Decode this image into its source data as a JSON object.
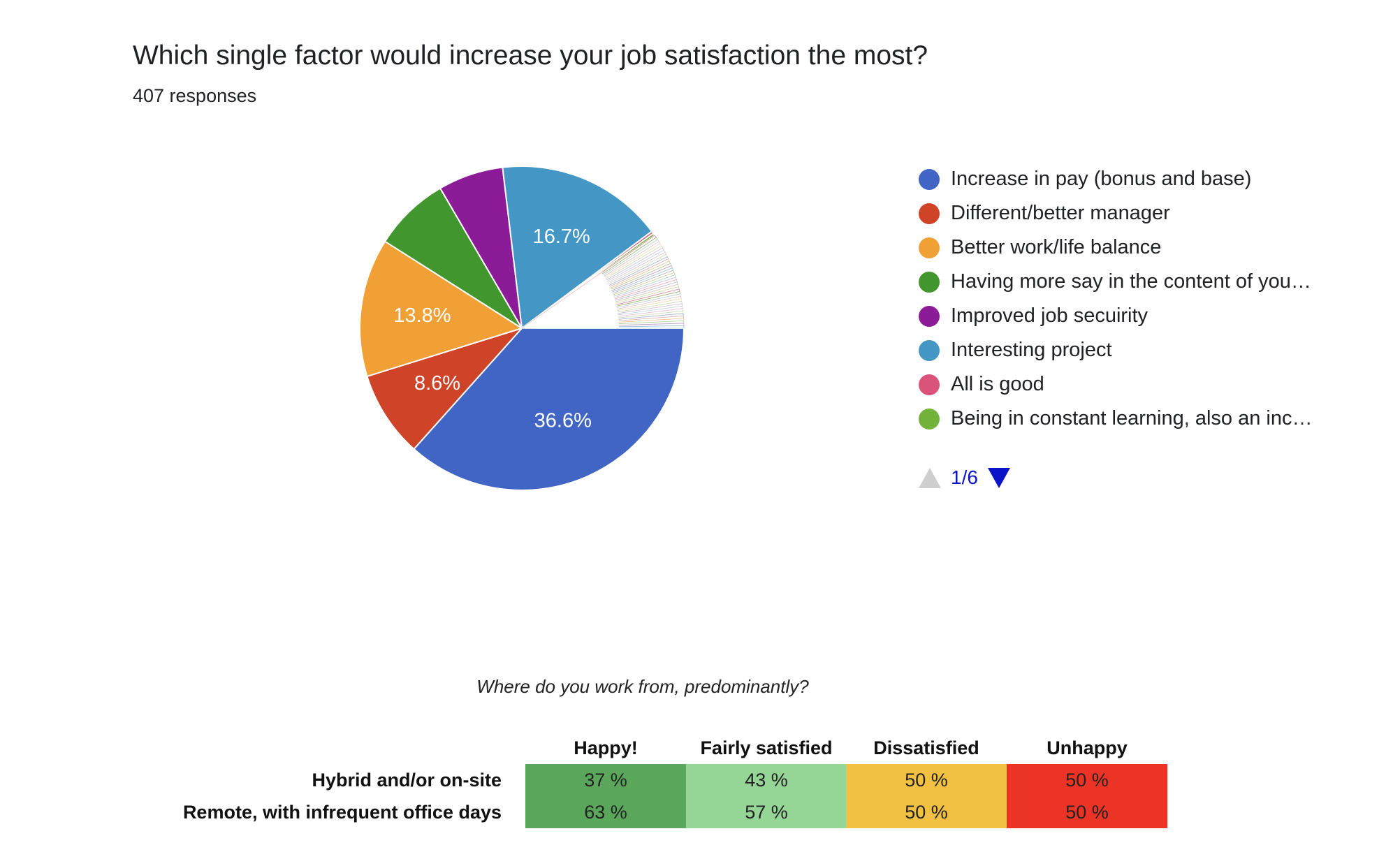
{
  "question": {
    "title": "Which single factor would increase your job satisfaction the most?",
    "responses": "407 responses"
  },
  "chart_data": [
    {
      "type": "pie",
      "title": "Which single factor would increase your job satisfaction the most?",
      "subtitle": "407 responses",
      "legend_position": "right",
      "slices": [
        {
          "label": "Increase in pay (bonus and base)",
          "value": 36.6,
          "color": "#4065c4",
          "data_label": "36.6%"
        },
        {
          "label": "Different/better manager",
          "value": 8.6,
          "color": "#cf4428",
          "data_label": "8.6%"
        },
        {
          "label": "Better work/life balance",
          "value": 13.8,
          "color": "#f0a035",
          "data_label": "13.8%"
        },
        {
          "label": "Having more say in the content of you…",
          "value": 7.6,
          "color": "#41962e",
          "data_label": ""
        },
        {
          "label": "Improved job secuirity",
          "value": 6.5,
          "color": "#8c1b98",
          "data_label": ""
        },
        {
          "label": "Interesting project",
          "value": 16.7,
          "color": "#4496c5",
          "data_label": "16.7%"
        },
        {
          "label": "All is good",
          "value": 0.25,
          "color": "#d9537a",
          "data_label": ""
        },
        {
          "label": "Being in constant learning, also an inc…",
          "value": 0.25,
          "color": "#72b23b",
          "data_label": ""
        }
      ],
      "pagination": "1/6"
    },
    {
      "type": "table",
      "title": "Where do you work from, predominantly?",
      "columns": [
        "Happy!",
        "Fairly satisfied",
        "Dissatisfied",
        "Unhappy"
      ],
      "rows": [
        {
          "label": "Hybrid and/or on-site",
          "values": [
            "37 %",
            "43 %",
            "50 %",
            "50 %"
          ]
        },
        {
          "label": "Remote, with infrequent office days",
          "values": [
            "63 %",
            "57 %",
            "50 %",
            "50 %"
          ]
        }
      ],
      "column_colors": [
        "#5aa75b",
        "#95d595",
        "#f2c143",
        "#eb3425"
      ]
    }
  ],
  "pie_small_slice_colors": [
    "#d9537a",
    "#72b23b",
    "#a9c2e7",
    "#e7b2a7",
    "#f6d3a1",
    "#a9d59f",
    "#cfa3d4",
    "#a3cde5",
    "#eba8bc",
    "#bcd99d",
    "#7f8ed4",
    "#e39b8c",
    "#f3bd7a",
    "#7fc07a",
    "#b47ab8",
    "#7db7d9",
    "#9d9d9d",
    "#c9c97a",
    "#8cc7bd",
    "#d4a5e0",
    "#f0908a",
    "#96b3d8",
    "#d9b38c",
    "#b8d98c"
  ],
  "pager": {
    "page": "1/6"
  }
}
